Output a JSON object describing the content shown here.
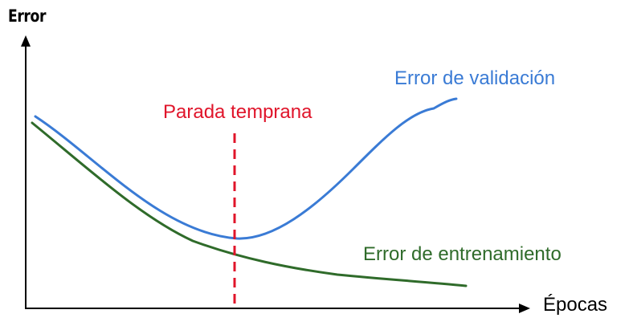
{
  "axes": {
    "y_label": "Error",
    "x_label": "Épocas"
  },
  "curves": {
    "validation": {
      "label": "Error de validación",
      "color": "#3a7bd5"
    },
    "training": {
      "label": "Error de entrenamiento",
      "color": "#2f6b2a"
    }
  },
  "early_stopping": {
    "label": "Parada temprana",
    "color": "#e0142a"
  },
  "axis_color": "#000000"
}
